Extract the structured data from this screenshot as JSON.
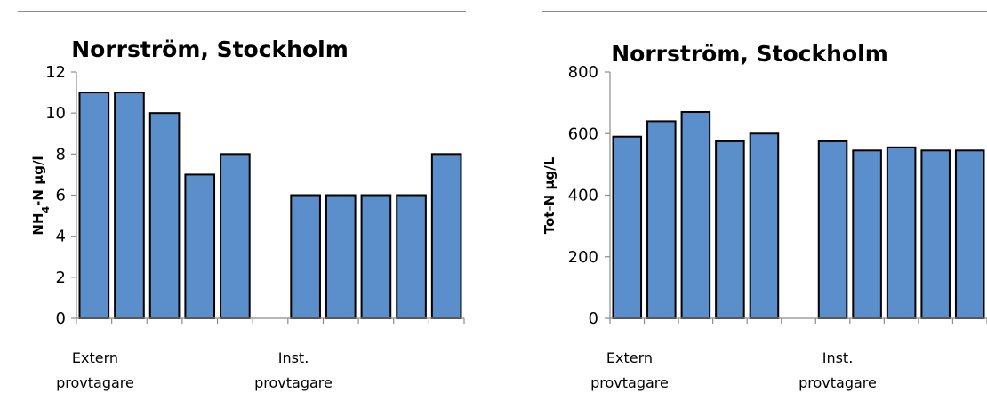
{
  "chart_data": [
    {
      "type": "bar",
      "title": "Norrström, Stockholm",
      "ylabel_main": "NH",
      "ylabel_sub": "4",
      "ylabel_rest": "-N µg/l",
      "ylim": [
        0,
        12
      ],
      "yticks": [
        "0",
        "2",
        "4",
        "6",
        "8",
        "10",
        "12"
      ],
      "category_labels": [
        {
          "line1": "Extern",
          "line2": "provtagare"
        },
        {
          "line1": "Inst.",
          "line2": "provtagare"
        }
      ],
      "values": [
        11,
        11,
        10,
        7,
        8,
        null,
        6,
        6,
        6,
        6,
        8
      ]
    },
    {
      "type": "bar",
      "title": "Norrström, Stockholm",
      "ylabel_main": "Tot-N µg/L",
      "ylim": [
        0,
        800
      ],
      "yticks": [
        "0",
        "200",
        "400",
        "600",
        "800"
      ],
      "category_labels": [
        {
          "line1": "Extern",
          "line2": "provtagare"
        },
        {
          "line1": "Inst.",
          "line2": "provtagare"
        }
      ],
      "values": [
        590,
        640,
        670,
        575,
        600,
        null,
        575,
        545,
        555,
        545,
        545
      ]
    }
  ]
}
